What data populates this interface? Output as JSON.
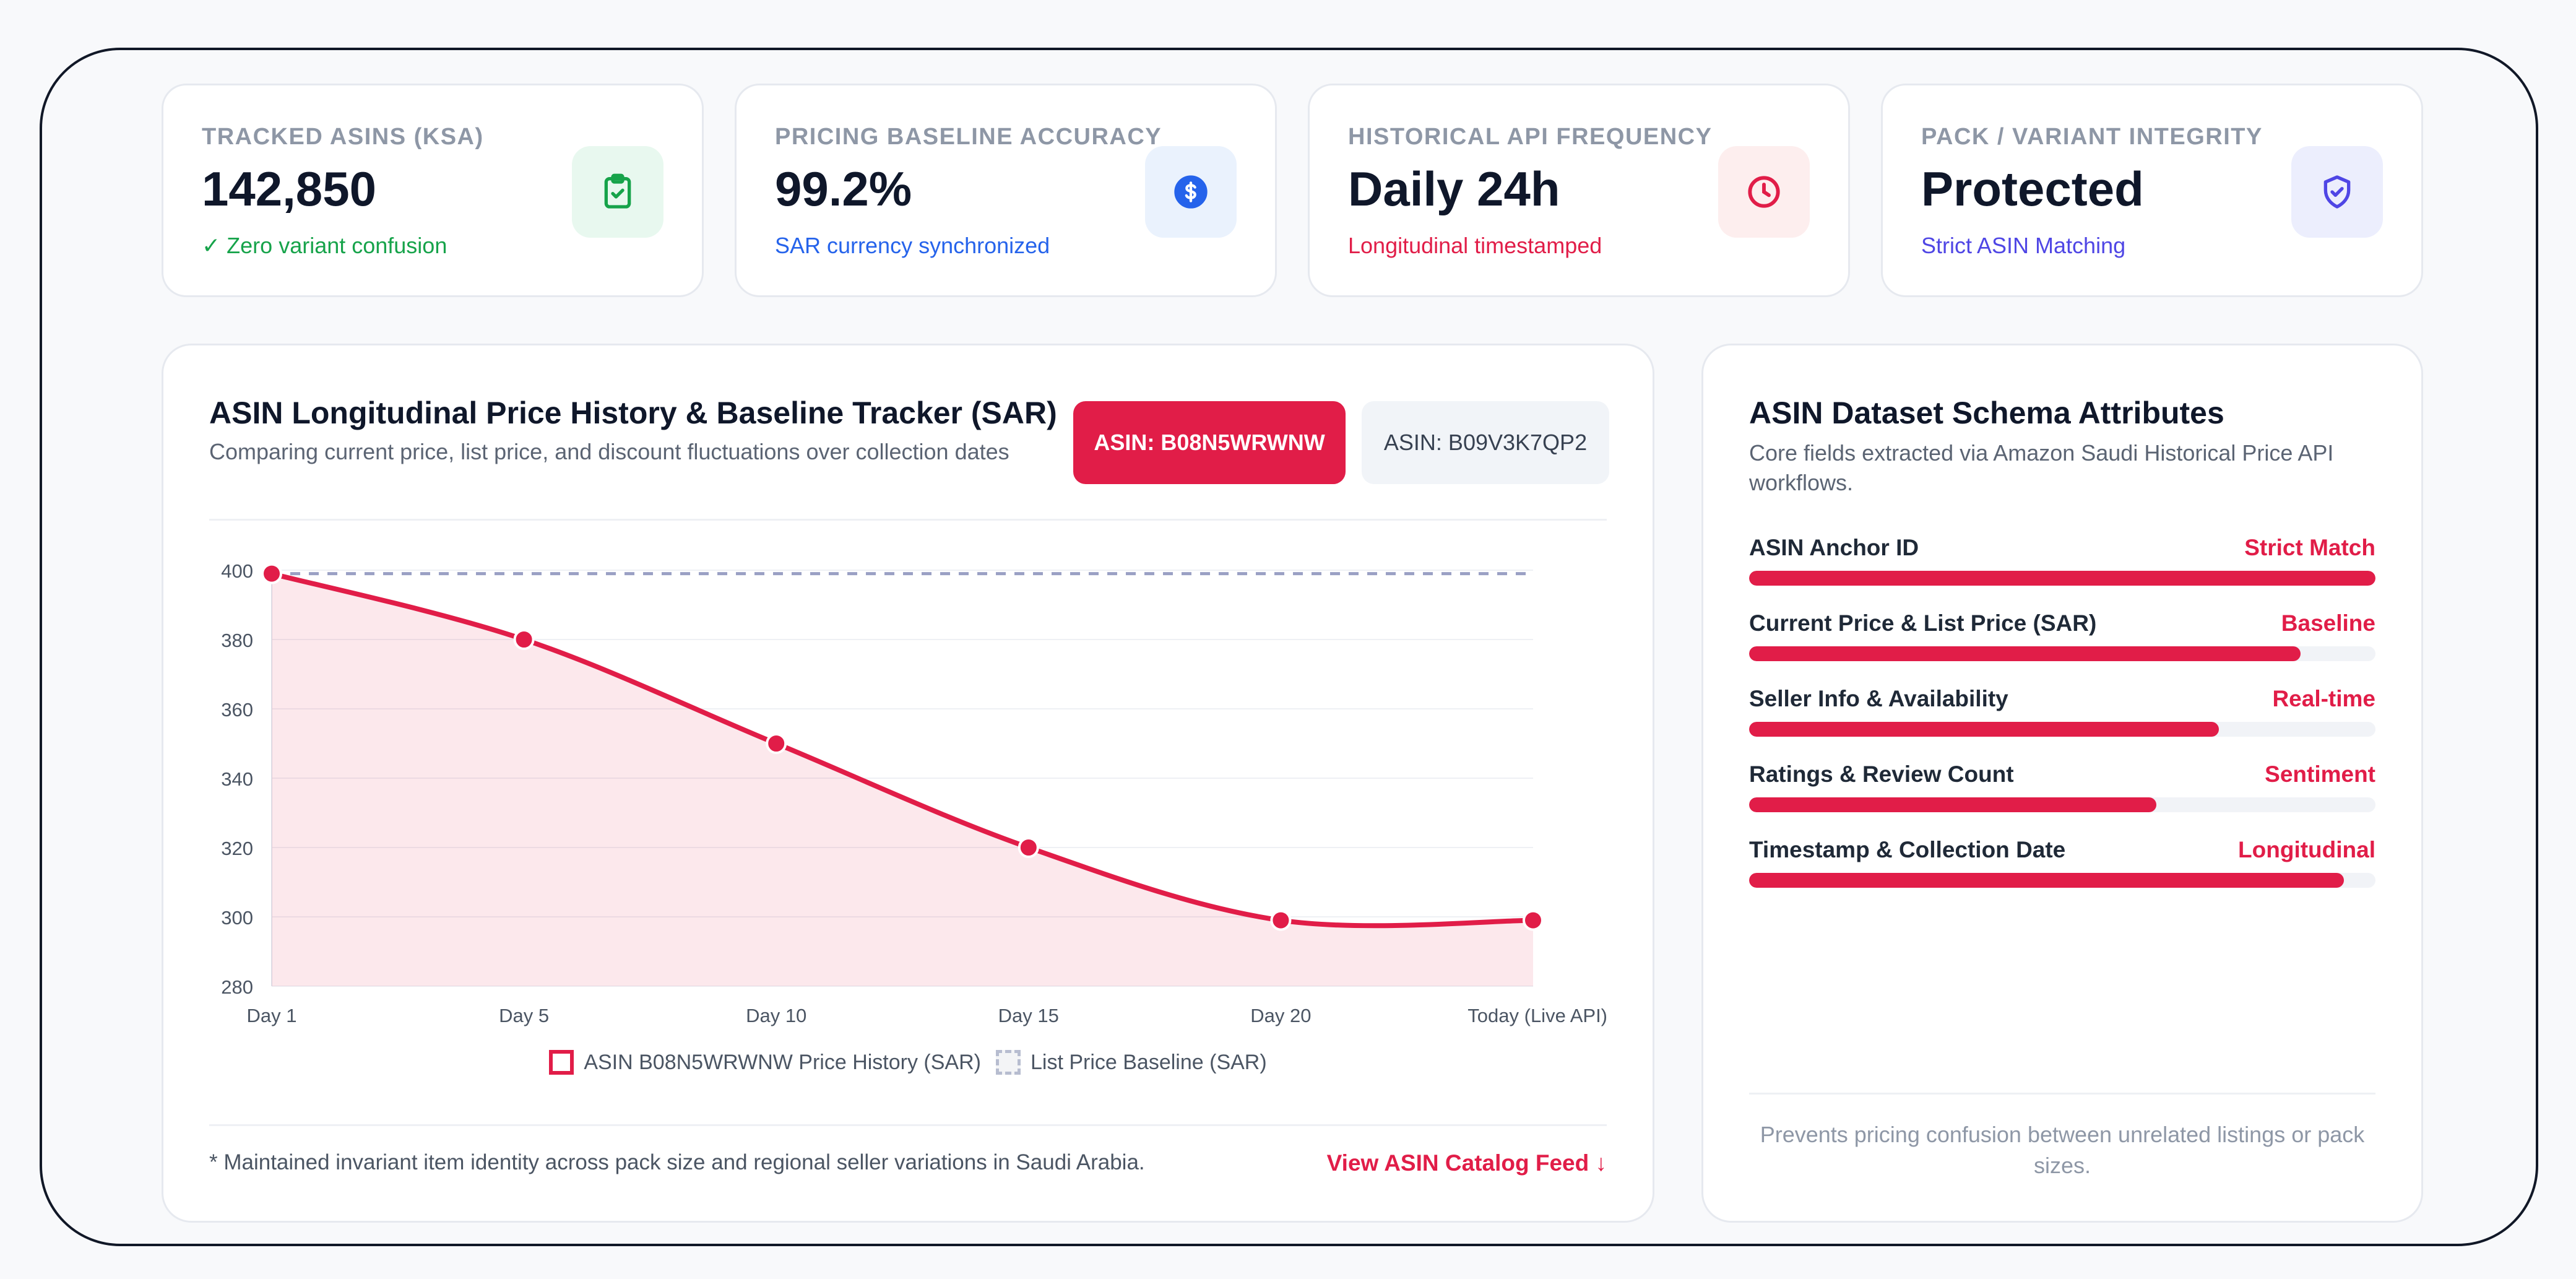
{
  "kpis": [
    {
      "label": "TRACKED ASINS (KSA)",
      "value": "142,850",
      "sub": "✓ Zero variant confusion",
      "sub_color": "#16a34a",
      "icon": "clipboard-check-icon",
      "icon_bg": "#e8f8ef",
      "icon_color": "#16a34a"
    },
    {
      "label": "PRICING BASELINE ACCURACY",
      "value": "99.2%",
      "sub": "SAR currency synchronized",
      "sub_color": "#2563eb",
      "icon": "dollar-circle-icon",
      "icon_bg": "#eaf2fd",
      "icon_color": "#2563eb"
    },
    {
      "label": "HISTORICAL API FREQUENCY",
      "value": "Daily 24h",
      "sub": "Longitudinal timestamped",
      "sub_color": "#e11d48",
      "icon": "clock-icon",
      "icon_bg": "#fdeeee",
      "icon_color": "#e11d48"
    },
    {
      "label": "PACK / VARIANT INTEGRITY",
      "value": "Protected",
      "sub": "Strict ASIN Matching",
      "sub_color": "#4f46e5",
      "icon": "shield-check-icon",
      "icon_bg": "#eceefd",
      "icon_color": "#4f46e5"
    }
  ],
  "chart_panel": {
    "title": "ASIN Longitudinal Price History & Baseline Tracker (SAR)",
    "subtitle": "Comparing current price, list price, and discount fluctuations over collection dates",
    "asin_buttons": [
      {
        "label": "ASIN: B08N5WRWNW",
        "active": true
      },
      {
        "label": "ASIN: B09V3K7QP2",
        "active": false
      }
    ],
    "footnote": "* Maintained invariant item identity across pack size and regional seller variations in Saudi Arabia.",
    "link_label": "View ASIN Catalog Feed ↓"
  },
  "chart_data": {
    "type": "line",
    "categories": [
      "Day 1",
      "Day 5",
      "Day 10",
      "Day 15",
      "Day 20",
      "Today (Live API)"
    ],
    "series": [
      {
        "name": "ASIN B08N5WRWNW Price History (SAR)",
        "values": [
          399,
          380,
          350,
          320,
          299,
          299
        ],
        "color": "#e11d48",
        "fill": true
      },
      {
        "name": "List Price Baseline (SAR)",
        "values": [
          399,
          399,
          399,
          399,
          399,
          399
        ],
        "color": "#9aa0c4",
        "dashed": true
      }
    ],
    "yticks": [
      280,
      300,
      320,
      340,
      360,
      380,
      400
    ],
    "ylim": [
      280,
      400
    ],
    "grid": true,
    "legend_position": "bottom"
  },
  "schema_panel": {
    "title": "ASIN Dataset Schema Attributes",
    "subtitle": "Core fields extracted via Amazon Saudi Historical Price API workflows.",
    "attributes": [
      {
        "name": "ASIN Anchor ID",
        "tag": "Strict Match",
        "level": 1.0
      },
      {
        "name": "Current Price & List Price (SAR)",
        "tag": "Baseline",
        "level": 0.88
      },
      {
        "name": "Seller Info & Availability",
        "tag": "Real-time",
        "level": 0.75
      },
      {
        "name": "Ratings & Review Count",
        "tag": "Sentiment",
        "level": 0.65
      },
      {
        "name": "Timestamp & Collection Date",
        "tag": "Longitudinal",
        "level": 0.95
      }
    ],
    "note": "Prevents pricing confusion between unrelated listings or pack sizes."
  }
}
